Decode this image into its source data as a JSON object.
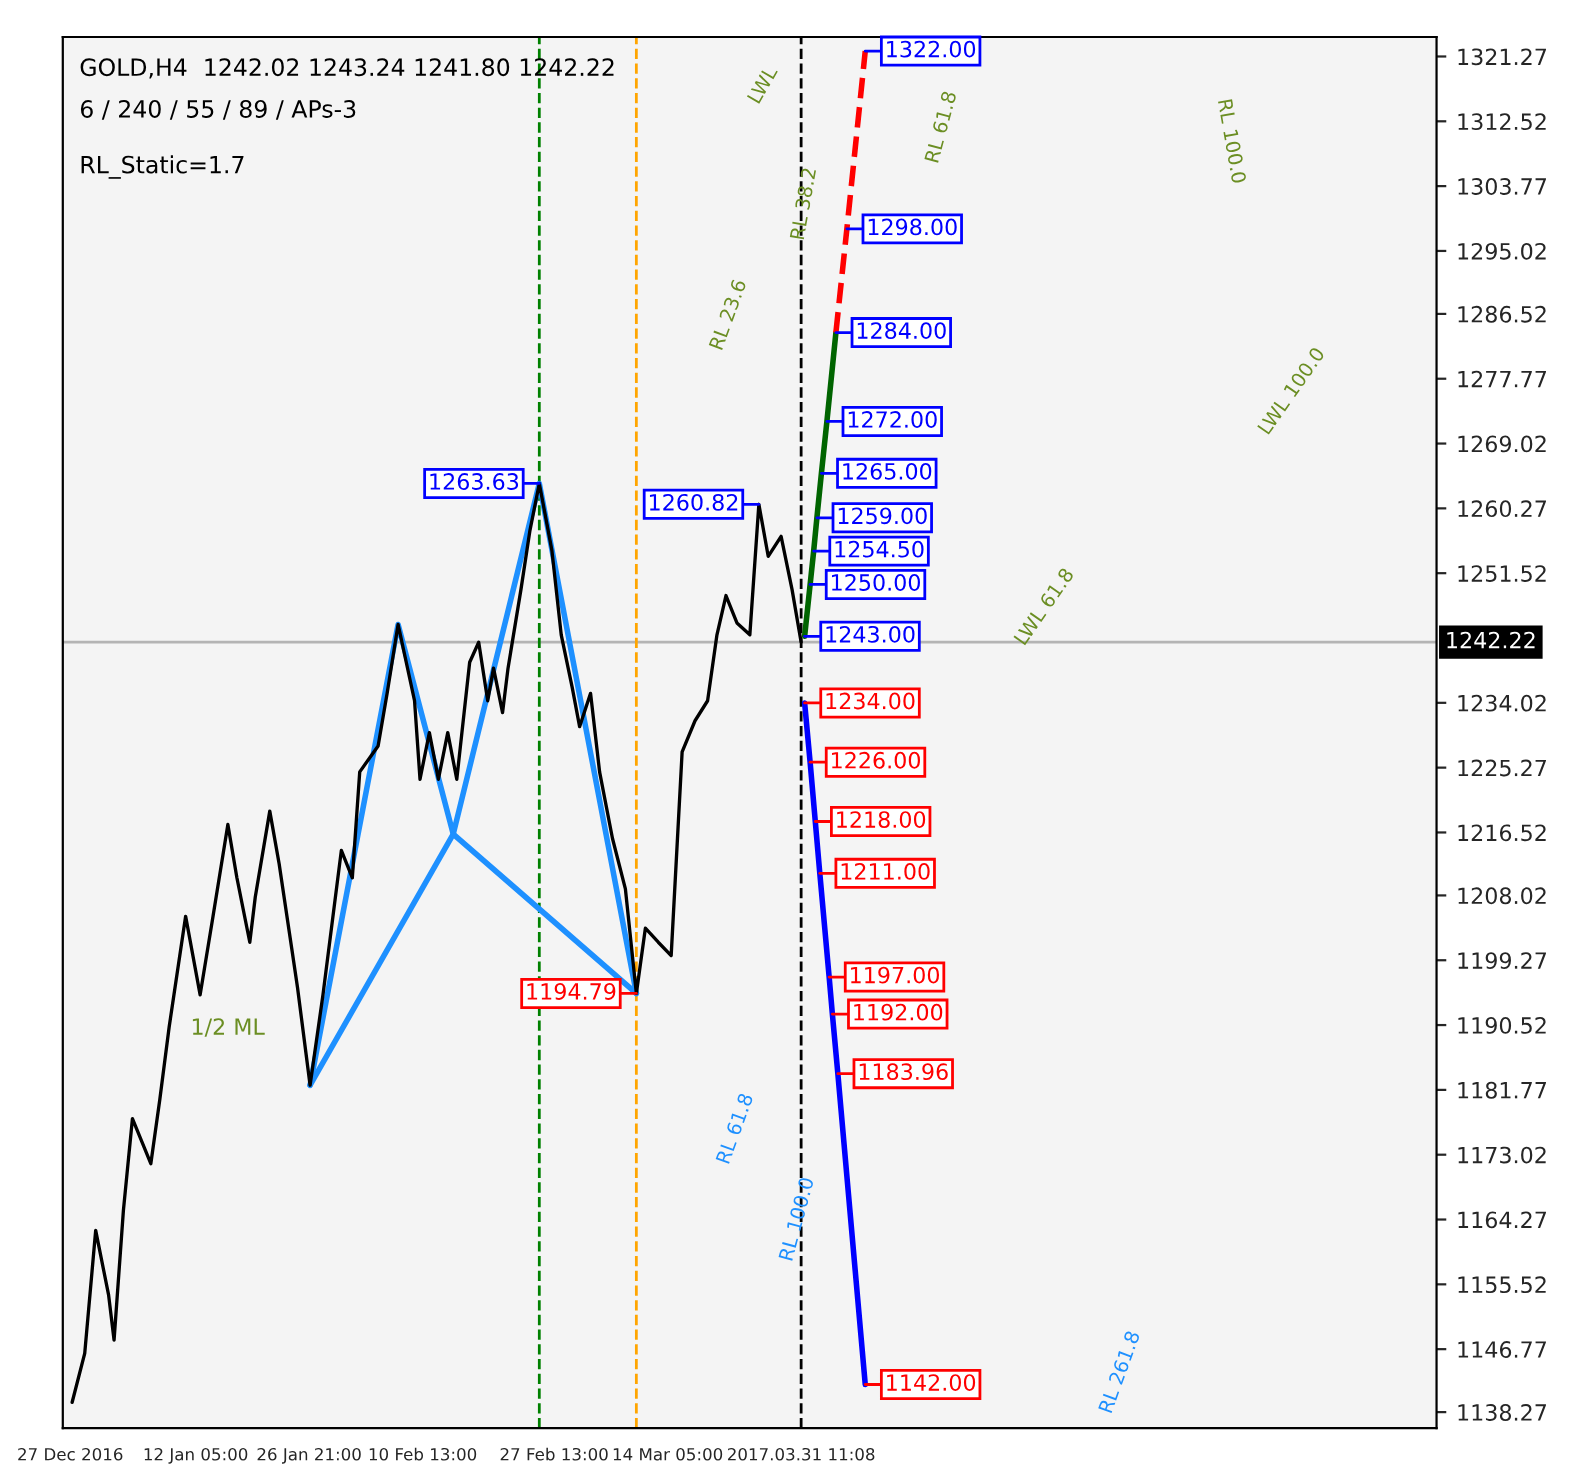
{
  "chart_data": {
    "type": "line",
    "annotations": [
      "GOLD,H4  1242.02 1243.24 1241.80 1242.22",
      "6 / 240 / 55 / 89 / APs-3",
      "RL_Static=1.7",
      "1/2 ML",
      "RL 23.6",
      "RL 38.2",
      "RL 61.8",
      "RL 100.0",
      "LWL",
      "LWL 100.0",
      "LWL 61.8",
      "RL 61.8",
      "RL 100.0",
      "RL 261.8",
      {
        "text": "1322.00",
        "x": "2017-04-08T18:00",
        "y": 1322.0
      },
      {
        "text": "1298.00",
        "x": "2017-04-06T09:00",
        "y": 1298.0
      },
      {
        "text": "1284.00",
        "x": "2017-04-04T23:00",
        "y": 1284.0
      },
      {
        "text": "1272.00",
        "x": "2017-04-03T19:00",
        "y": 1272.0
      },
      {
        "text": "1265.00",
        "x": "2017-04-03T02:00",
        "y": 1265.0
      },
      {
        "text": "1259.00",
        "x": "2017-04-02T12:00",
        "y": 1259.0
      },
      {
        "text": "1254.50",
        "x": "2017-04-02T02:00",
        "y": 1254.5
      },
      {
        "text": "1250.00",
        "x": "2017-04-01T15:00",
        "y": 1250.0
      },
      {
        "text": "1243.00",
        "x": "2017-03-31T22:00",
        "y": 1243.0
      },
      {
        "text": "1234.00",
        "x": "2017-03-31T22:00",
        "y": 1234.0
      },
      {
        "text": "1226.00",
        "x": "2017-04-01T15:00",
        "y": 1226.0
      },
      {
        "text": "1218.00",
        "x": "2017-04-02T07:00",
        "y": 1218.0
      },
      {
        "text": "1211.00",
        "x": "2017-04-02T21:00",
        "y": 1211.0
      },
      {
        "text": "1197.00",
        "x": "2017-04-04T02:00",
        "y": 1197.0
      },
      {
        "text": "1192.00",
        "x": "2017-04-04T12:00",
        "y": 1192.0
      },
      {
        "text": "1183.96",
        "x": "2017-04-05T05:00",
        "y": 1183.96
      },
      {
        "text": "1142.00",
        "x": "2017-04-08T18:00",
        "y": 1142.0
      },
      {
        "text": "1263.63",
        "x": "2017-02-25T15:00",
        "y": 1263.63
      },
      {
        "text": "1260.82",
        "x": "2017-03-26T00:00",
        "y": 1260.82
      },
      {
        "text": "1194.79",
        "x": "2017-03-10T04:00",
        "y": 1194.79
      }
    ],
    "series": [
      {
        "color": "#000000",
        "x": [
          "2016-12-27T06:00",
          "2016-12-28T21:00",
          "2016-12-30T07:00",
          "2016-12-31T23:00",
          "2017-01-01T16:00",
          "2017-01-02T21:00",
          "2017-01-04T01:00",
          "2017-01-06T10:00",
          "2017-01-07T14:00",
          "2017-01-08T19:00",
          "2017-01-10T22:00",
          "2017-01-12T19:00",
          "2017-01-14T11:00",
          "2017-01-16T09:00",
          "2017-01-17T13:00",
          "2017-01-19T05:00",
          "2017-01-19T22:00",
          "2017-01-21T19:00",
          "2017-01-23T00:00",
          "2017-01-24T15:00",
          "2017-01-25T09:00",
          "2017-01-27T00:00",
          "2017-01-28T16:00",
          "2017-01-31T01:00",
          "2017-02-01T11:00",
          "2017-02-02T10:00",
          "2017-02-04T19:00",
          "2017-02-05T23:00",
          "2017-02-07T09:00",
          "2017-02-09T12:00",
          "2017-02-10T05:00",
          "2017-02-11T10:00",
          "2017-02-12T14:00",
          "2017-02-13T19:00",
          "2017-02-14T23:00",
          "2017-02-16T15:00",
          "2017-02-17T19:00",
          "2017-02-18T23:00",
          "2017-02-19T17:00",
          "2017-02-20T21:00",
          "2017-02-21T14:00",
          "2017-02-23T06:00",
          "2017-02-24T10:00",
          "2017-02-25T15:00",
          "2017-02-27T06:00",
          "2017-02-28T11:00",
          "2017-03-01T21:00",
          "2017-03-02T20:00",
          "2017-03-04T06:00",
          "2017-03-05T10:00",
          "2017-03-07T02:00",
          "2017-03-08T18:00",
          "2017-03-10T04:00",
          "2017-03-11T08:00",
          "2017-03-13T00:00",
          "2017-03-14T16:00",
          "2017-03-16T02:00",
          "2017-03-17T18:00",
          "2017-03-19T09:00",
          "2017-03-20T14:00",
          "2017-03-21T18:00",
          "2017-03-23T04:00",
          "2017-03-24T20:00",
          "2017-03-26T00:00",
          "2017-03-27T05:00",
          "2017-03-28T21:00",
          "2017-03-30T07:00",
          "2017-03-31T11:00"
        ],
        "values": [
          1139.6,
          1146.2,
          1162.8,
          1154.1,
          1148.0,
          1165.5,
          1177.9,
          1171.8,
          1180.5,
          1190.3,
          1205.2,
          1194.6,
          1205.2,
          1217.6,
          1210.4,
          1201.7,
          1207.8,
          1219.4,
          1212.3,
          1200.9,
          1195.6,
          1182.4,
          1194.6,
          1214.1,
          1210.4,
          1224.7,
          1228.2,
          1235.3,
          1244.6,
          1234.3,
          1223.7,
          1230.0,
          1223.7,
          1230.0,
          1223.7,
          1239.5,
          1242.2,
          1234.3,
          1238.7,
          1232.7,
          1238.7,
          1249.3,
          1257.3,
          1263.63,
          1254.6,
          1243.2,
          1236.1,
          1230.8,
          1235.3,
          1224.7,
          1215.7,
          1208.9,
          1194.79,
          1203.6,
          1201.7,
          1199.9,
          1227.4,
          1231.6,
          1234.3,
          1243.2,
          1248.5,
          1244.8,
          1243.2,
          1260.82,
          1253.8,
          1256.5,
          1249.3,
          1242.22
        ]
      },
      {
        "color": "#1e90ff",
        "x": [
          "2017-01-27T00:00",
          "2017-02-07T09:00",
          "2017-02-14T12:00",
          "2017-02-25T15:00",
          "2017-03-10T04:00"
        ],
        "values": [
          1182.4,
          1244.6,
          1216.3,
          1263.63,
          1194.79
        ]
      },
      {
        "color": "#1e90ff",
        "x": [
          "2017-01-27T00:00",
          "2017-02-14T12:00",
          "2017-03-10T04:00"
        ],
        "values": [
          1182.4,
          1216.3,
          1194.79
        ]
      },
      {
        "color": "#006400",
        "x": [
          "2017-03-31T22:00",
          "2017-04-01T15:00",
          "2017-04-02T02:00",
          "2017-04-02T12:00",
          "2017-04-03T02:00",
          "2017-04-03T19:00",
          "2017-04-04T23:00"
        ],
        "values": [
          1243.0,
          1250.0,
          1254.5,
          1259.0,
          1265.0,
          1272.0,
          1284.0
        ]
      },
      {
        "color": "#ff0000",
        "line_style": "dashed",
        "x": [
          "2017-04-04T23:00",
          "2017-04-06T09:00",
          "2017-04-08T18:00"
        ],
        "values": [
          1284.0,
          1298.0,
          1322.0
        ]
      },
      {
        "color": "#0000ff",
        "x": [
          "2017-03-31T22:00",
          "2017-04-01T15:00",
          "2017-04-02T07:00",
          "2017-04-02T21:00",
          "2017-04-04T02:00",
          "2017-04-04T12:00",
          "2017-04-05T05:00",
          "2017-04-08T18:00"
        ],
        "values": [
          1234.0,
          1226.0,
          1218.0,
          1211.0,
          1197.0,
          1192.0,
          1183.96,
          1142.0
        ]
      }
    ],
    "ref_lines": [
      {
        "axis": "y",
        "value": 1242.22,
        "label": "1242.22",
        "color": "#b4b4b4"
      },
      {
        "axis": "x",
        "value": "2017-03-31T11:08",
        "color": "#000000",
        "line_style": "dashed"
      },
      {
        "axis": "x",
        "value": "2017-02-25T15:00",
        "color": "#008000",
        "line_style": "dashed"
      },
      {
        "axis": "x",
        "value": "2017-03-10T04:00",
        "color": "#ffa500",
        "line_style": "dashed"
      }
    ],
    "xlim": [
      "2016-12-26T01:00",
      "2017-06-21T14:00"
    ],
    "xticks": [
      {
        "value": "2016-12-27T00:00",
        "label": "27 Dec 2016"
      },
      {
        "value": "2017-01-12T05:00",
        "label": "12 Jan 05:00"
      },
      {
        "value": "2017-01-26T21:00",
        "label": "26 Jan 21:00"
      },
      {
        "value": "2017-02-10T13:00",
        "label": "10 Feb 13:00"
      },
      {
        "value": "2017-02-27T13:00",
        "label": "27 Feb 13:00"
      },
      {
        "value": "2017-03-14T05:00",
        "label": "14 Mar 05:00"
      },
      {
        "value": "2017-03-31T11:08",
        "label": "2017.03.31 11:08"
      }
    ],
    "ylim": [
      1136.1,
      1323.9
    ],
    "yticks": [
      1138.27,
      1146.77,
      1155.52,
      1164.27,
      1173.02,
      1181.77,
      1190.52,
      1199.27,
      1208.02,
      1216.52,
      1225.27,
      1234.02,
      1251.52,
      1260.27,
      1269.02,
      1277.77,
      1286.52,
      1295.02,
      1303.77,
      1312.52,
      1321.27
    ],
    "grid": false,
    "legend": false
  }
}
